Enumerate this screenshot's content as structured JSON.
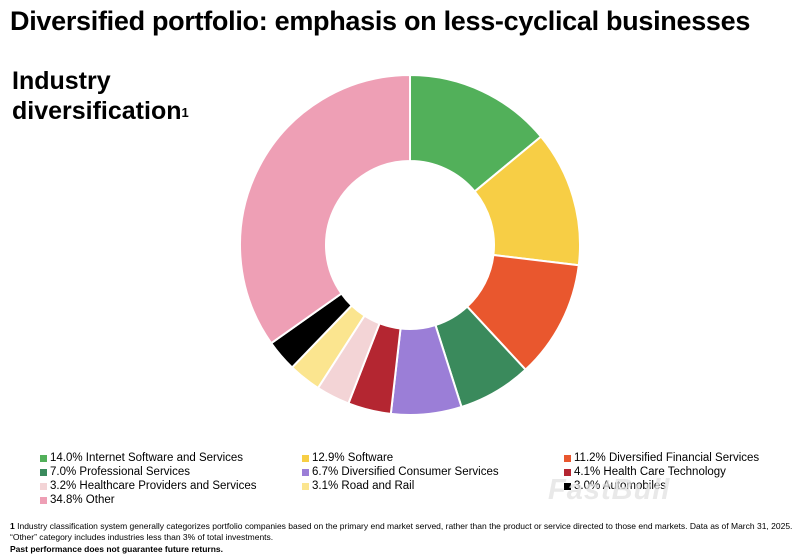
{
  "headline": "Diversified portfolio: emphasis on less-cyclical businesses",
  "subhead": {
    "text": "Industry diversification",
    "footnote_marker": "1"
  },
  "chart_data": {
    "type": "pie",
    "variant": "donut",
    "slices": [
      {
        "label": "14.0% Internet Software and Services",
        "value": 14.0,
        "color": "#52b05a"
      },
      {
        "label": "12.9% Software",
        "value": 12.9,
        "color": "#f7ce45"
      },
      {
        "label": "11.2% Diversified Financial Services",
        "value": 11.2,
        "color": "#e9572e"
      },
      {
        "label": "7.0% Professional Services",
        "value": 7.0,
        "color": "#3a8a5c"
      },
      {
        "label": "6.7% Diversified Consumer Services",
        "value": 6.7,
        "color": "#9b7ed7"
      },
      {
        "label": "4.1% Health Care Technology",
        "value": 4.1,
        "color": "#b42631"
      },
      {
        "label": "3.2% Healthcare Providers and Services",
        "value": 3.2,
        "color": "#f3d4d6"
      },
      {
        "label": "3.1% Road and Rail",
        "value": 3.1,
        "color": "#fbe58f"
      },
      {
        "label": "3.0% Automobiles",
        "value": 3.0,
        "color": "#000000"
      },
      {
        "label": "34.8% Other",
        "value": 34.8,
        "color": "#ee9fb5"
      }
    ]
  },
  "watermark": "FastBull",
  "footnote": {
    "marker": "1",
    "text": "Industry classification system generally categorizes portfolio companies based on the primary end market served, rather than the product or service directed to those end markets. Data as of March 31, 2025. “Other” category includes industries less than 3% of total investments."
  },
  "disclaimer": "Past performance does not guarantee future returns."
}
